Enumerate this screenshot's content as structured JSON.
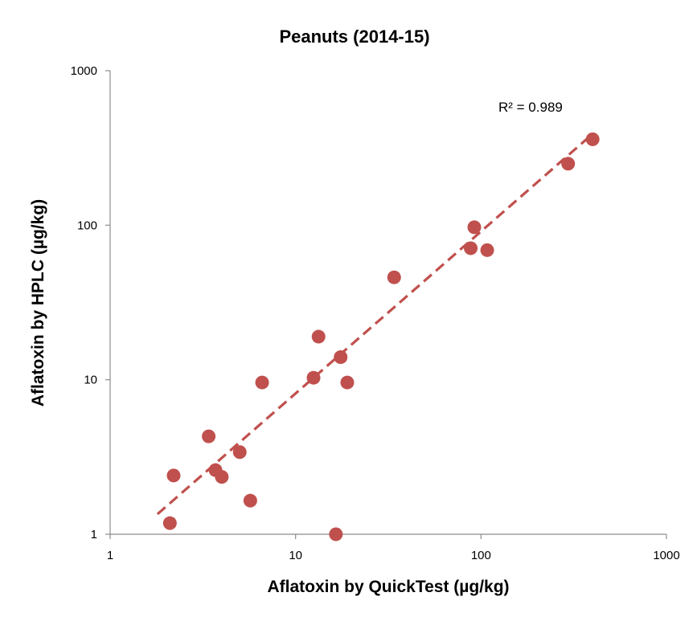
{
  "chart_data": {
    "type": "scatter",
    "title": "Peanuts (2014-15)",
    "xlabel": "Aflatoxin by QuickTest (µg/kg)",
    "ylabel": "Aflatoxin by HPLC (µg/kg)",
    "x_scale": "log",
    "y_scale": "log",
    "xlim": [
      1,
      1000
    ],
    "ylim": [
      1,
      1000
    ],
    "x_ticks": [
      "1",
      "10",
      "100",
      "1000"
    ],
    "y_ticks": [
      "1",
      "10",
      "100",
      "1000"
    ],
    "grid": false,
    "marker_color": "#C0504D",
    "trendline": {
      "type": "power",
      "style": "dashed",
      "color": "#C0504D",
      "x_range": [
        1.8,
        400
      ],
      "y_range": [
        1.35,
        390
      ],
      "annotation": "R² = 0.989"
    },
    "points": [
      {
        "x": 2.1,
        "y": 1.18
      },
      {
        "x": 2.2,
        "y": 2.4
      },
      {
        "x": 3.4,
        "y": 4.3
      },
      {
        "x": 3.7,
        "y": 2.6
      },
      {
        "x": 4.0,
        "y": 2.35
      },
      {
        "x": 5.0,
        "y": 3.4
      },
      {
        "x": 5.7,
        "y": 1.65
      },
      {
        "x": 6.6,
        "y": 9.6
      },
      {
        "x": 12.5,
        "y": 10.3
      },
      {
        "x": 13.3,
        "y": 19.0
      },
      {
        "x": 16.5,
        "y": 1.0
      },
      {
        "x": 17.5,
        "y": 14.0
      },
      {
        "x": 19.0,
        "y": 9.6
      },
      {
        "x": 34.0,
        "y": 46.0
      },
      {
        "x": 88.0,
        "y": 71.0
      },
      {
        "x": 92.0,
        "y": 97.0
      },
      {
        "x": 108.0,
        "y": 69.0
      },
      {
        "x": 295.0,
        "y": 250.0
      },
      {
        "x": 400.0,
        "y": 360.0
      }
    ]
  }
}
